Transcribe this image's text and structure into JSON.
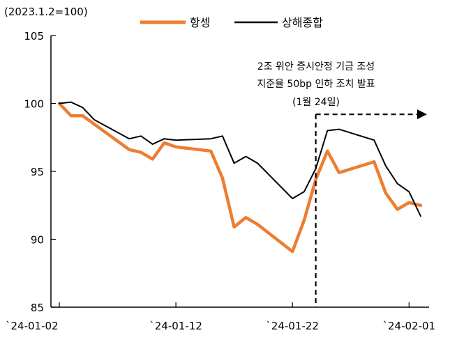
{
  "chart_data": {
    "type": "line",
    "unit_label": "(2023.1.2=100)",
    "title": "",
    "xlabel": "",
    "ylabel": "",
    "ylim": [
      85,
      105
    ],
    "yticks": [
      85,
      90,
      95,
      100,
      105
    ],
    "xlim": [
      "2024-01-02",
      "2024-02-02"
    ],
    "xtick_labels": [
      {
        "date": "2024-01-02",
        "label": "`24-01-02"
      },
      {
        "date": "2024-01-12",
        "label": "`24-01-12"
      },
      {
        "date": "2024-01-22",
        "label": "`24-01-22"
      },
      {
        "date": "2024-02-01",
        "label": "`24-02-01"
      }
    ],
    "grid": false,
    "legend_position": "top",
    "series": [
      {
        "name": "항셍",
        "color": "#ed7d31",
        "points": [
          {
            "x": "2024-01-02",
            "y": 100.0
          },
          {
            "x": "2024-01-03",
            "y": 99.1
          },
          {
            "x": "2024-01-04",
            "y": 99.1
          },
          {
            "x": "2024-01-08",
            "y": 96.6
          },
          {
            "x": "2024-01-09",
            "y": 96.4
          },
          {
            "x": "2024-01-10",
            "y": 95.9
          },
          {
            "x": "2024-01-11",
            "y": 97.1
          },
          {
            "x": "2024-01-12",
            "y": 96.8
          },
          {
            "x": "2024-01-15",
            "y": 96.5
          },
          {
            "x": "2024-01-16",
            "y": 94.5
          },
          {
            "x": "2024-01-17",
            "y": 90.9
          },
          {
            "x": "2024-01-18",
            "y": 91.6
          },
          {
            "x": "2024-01-19",
            "y": 91.1
          },
          {
            "x": "2024-01-22",
            "y": 89.1
          },
          {
            "x": "2024-01-23",
            "y": 91.4
          },
          {
            "x": "2024-01-24",
            "y": 94.4
          },
          {
            "x": "2024-01-25",
            "y": 96.5
          },
          {
            "x": "2024-01-26",
            "y": 94.9
          },
          {
            "x": "2024-01-29",
            "y": 95.7
          },
          {
            "x": "2024-01-30",
            "y": 93.4
          },
          {
            "x": "2024-01-31",
            "y": 92.2
          },
          {
            "x": "2024-02-01",
            "y": 92.7
          },
          {
            "x": "2024-02-02",
            "y": 92.5
          }
        ]
      },
      {
        "name": "상해종합",
        "color": "#000000",
        "points": [
          {
            "x": "2024-01-02",
            "y": 100.0
          },
          {
            "x": "2024-01-03",
            "y": 100.1
          },
          {
            "x": "2024-01-04",
            "y": 99.7
          },
          {
            "x": "2024-01-05",
            "y": 98.8
          },
          {
            "x": "2024-01-08",
            "y": 97.4
          },
          {
            "x": "2024-01-09",
            "y": 97.6
          },
          {
            "x": "2024-01-10",
            "y": 97.0
          },
          {
            "x": "2024-01-11",
            "y": 97.4
          },
          {
            "x": "2024-01-12",
            "y": 97.3
          },
          {
            "x": "2024-01-15",
            "y": 97.4
          },
          {
            "x": "2024-01-16",
            "y": 97.6
          },
          {
            "x": "2024-01-17",
            "y": 95.6
          },
          {
            "x": "2024-01-18",
            "y": 96.1
          },
          {
            "x": "2024-01-19",
            "y": 95.6
          },
          {
            "x": "2024-01-22",
            "y": 93.0
          },
          {
            "x": "2024-01-23",
            "y": 93.5
          },
          {
            "x": "2024-01-24",
            "y": 95.2
          },
          {
            "x": "2024-01-25",
            "y": 98.0
          },
          {
            "x": "2024-01-26",
            "y": 98.1
          },
          {
            "x": "2024-01-29",
            "y": 97.3
          },
          {
            "x": "2024-01-30",
            "y": 95.4
          },
          {
            "x": "2024-01-31",
            "y": 94.1
          },
          {
            "x": "2024-02-01",
            "y": 93.5
          },
          {
            "x": "2024-02-02",
            "y": 91.7
          }
        ]
      }
    ],
    "annotation": {
      "lines": [
        "2조 위안 증시안정 기금 조성",
        "지준율 50bp 인하 조치 발표",
        "(1월 24일)"
      ],
      "date": "2024-01-24",
      "arrow_level": 99.2
    }
  }
}
